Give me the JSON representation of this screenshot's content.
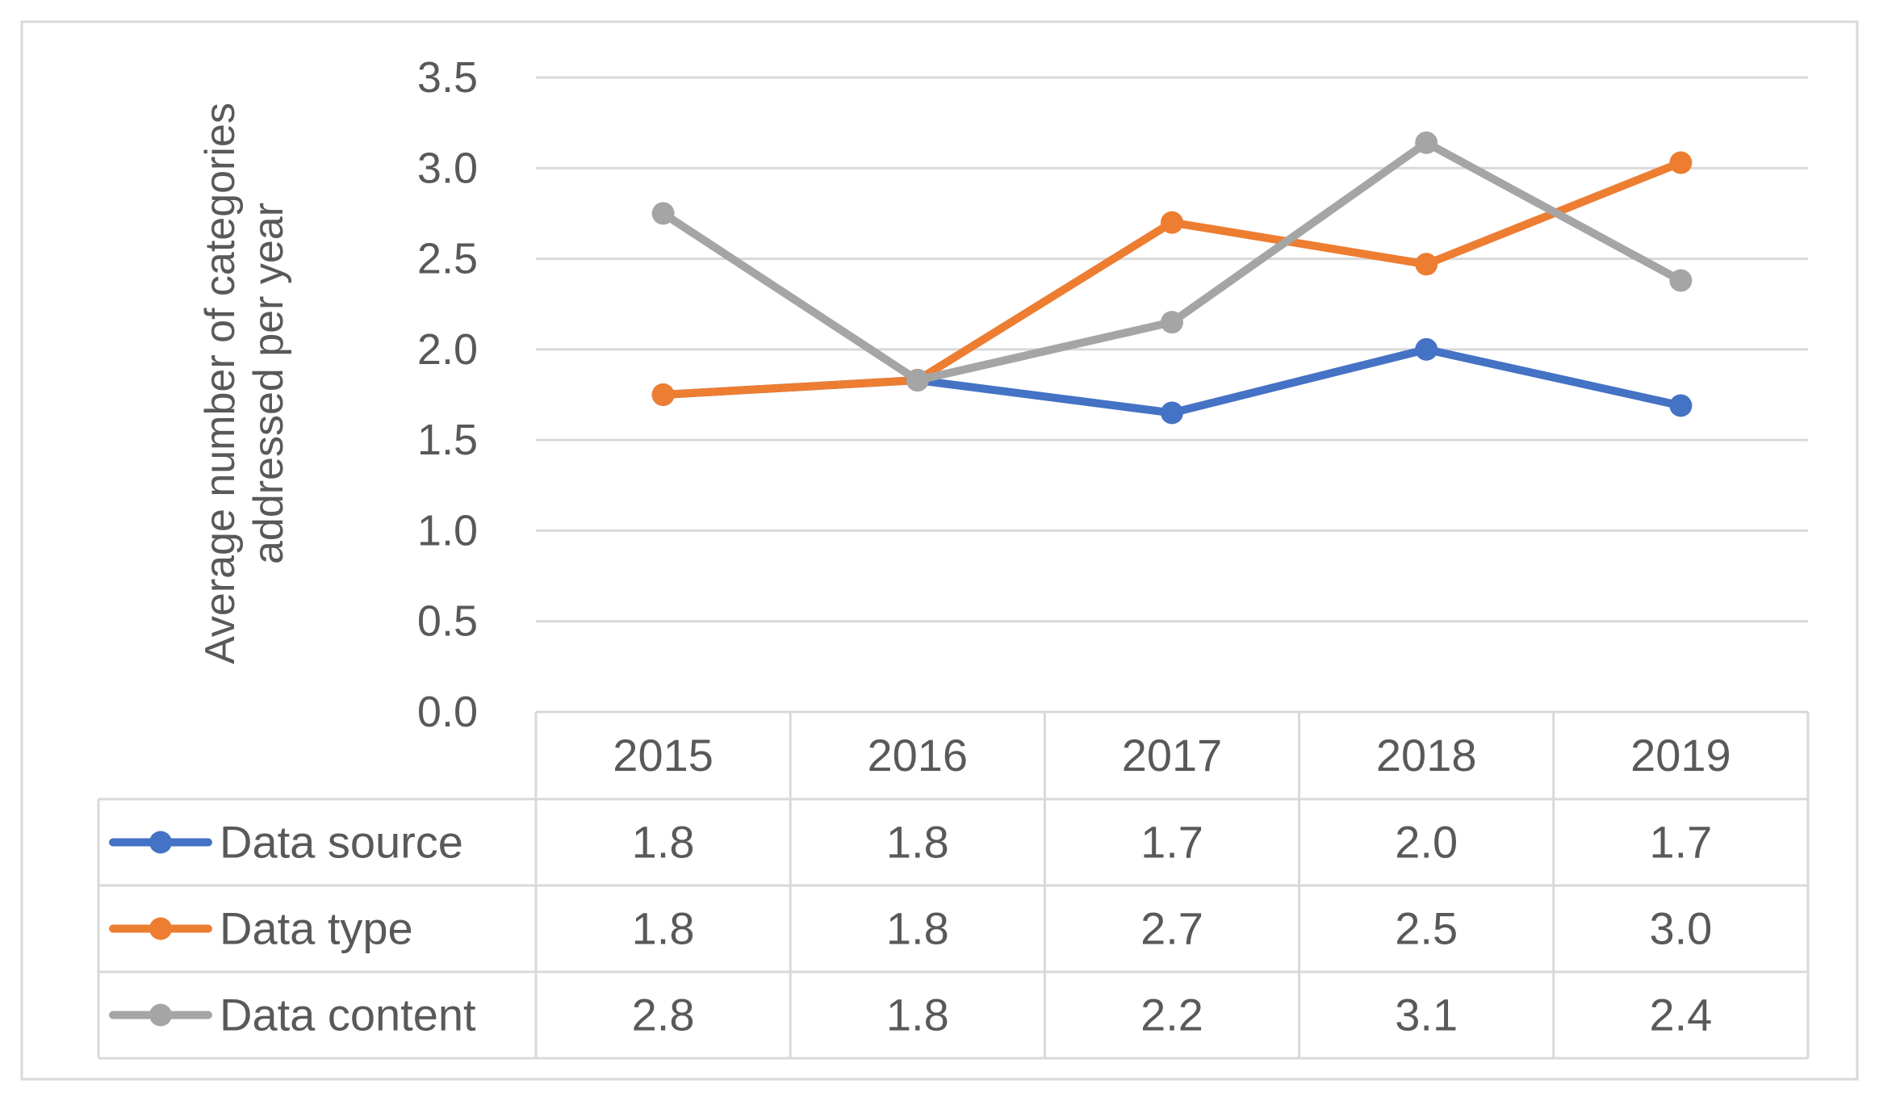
{
  "chart_data": {
    "type": "line",
    "title": "",
    "xlabel": "",
    "ylabel": "Average number of categories addressed per year",
    "ylabel_lines": [
      "Average number of categories",
      "addressed per year"
    ],
    "categories": [
      "2015",
      "2016",
      "2017",
      "2018",
      "2019"
    ],
    "ylim": [
      0,
      3.5
    ],
    "yticks": [
      "0.0",
      "0.5",
      "1.0",
      "1.5",
      "2.0",
      "2.5",
      "3.0",
      "3.5"
    ],
    "grid": true,
    "legend": "data-table",
    "series": [
      {
        "name": "Data source",
        "color": "#4472C4",
        "values": [
          1.75,
          1.83,
          1.65,
          2.0,
          1.69
        ],
        "labels": [
          "1.8",
          "1.8",
          "1.7",
          "2.0",
          "1.7"
        ]
      },
      {
        "name": "Data type",
        "color": "#ED7D31",
        "values": [
          1.75,
          1.83,
          2.7,
          2.47,
          3.03
        ],
        "labels": [
          "1.8",
          "1.8",
          "2.7",
          "2.5",
          "3.0"
        ]
      },
      {
        "name": "Data content",
        "color": "#A5A5A5",
        "values": [
          2.75,
          1.83,
          2.15,
          3.14,
          2.38
        ],
        "labels": [
          "2.8",
          "1.8",
          "2.2",
          "3.1",
          "2.4"
        ]
      }
    ]
  }
}
